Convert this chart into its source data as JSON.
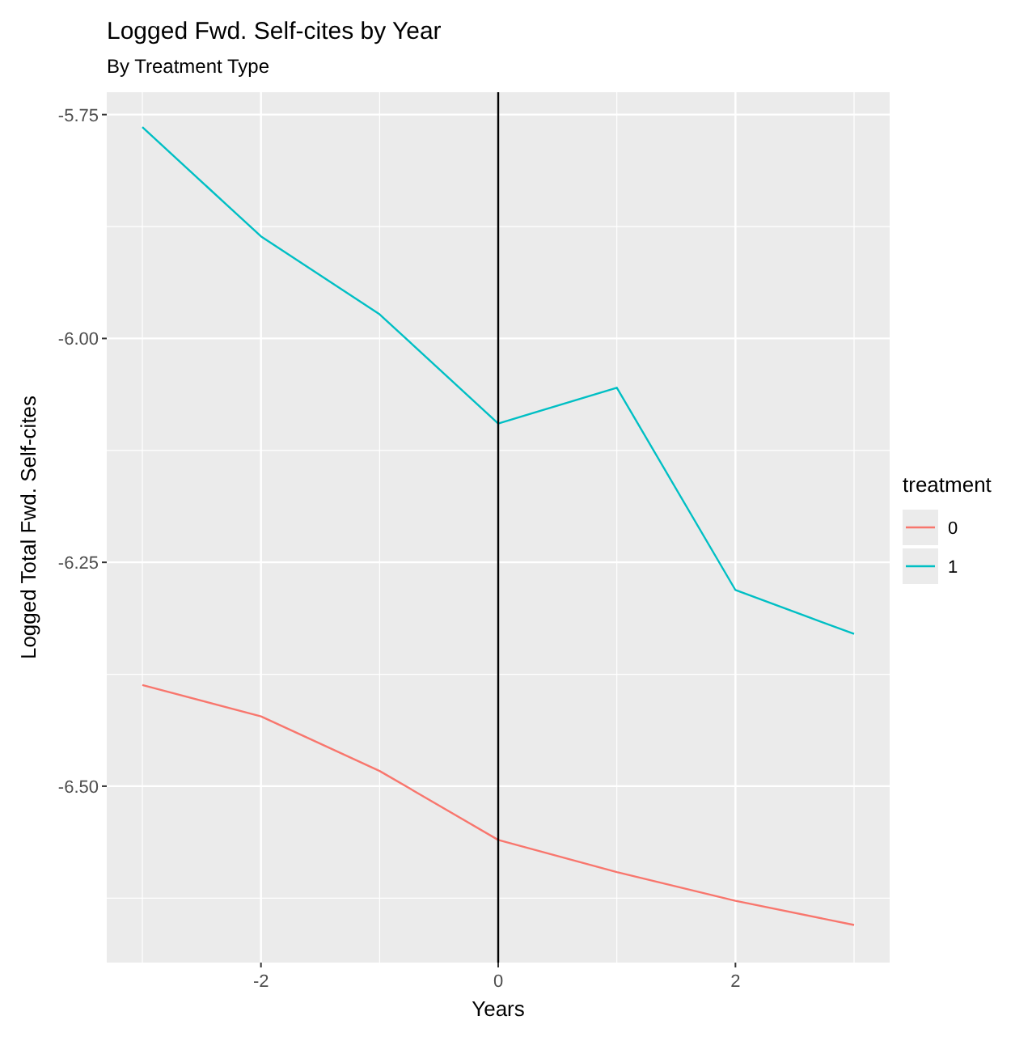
{
  "chart_data": {
    "type": "line",
    "title": "Logged Fwd. Self-cites by Year",
    "subtitle": "By Treatment Type",
    "xlabel": "Years",
    "ylabel": "Logged Total Fwd. Self-cites",
    "legend_title": "treatment",
    "x": [
      -3,
      -2,
      -1,
      0,
      1,
      2,
      3
    ],
    "series": [
      {
        "name": "0",
        "color": "#f8766d",
        "values": [
          -6.387,
          -6.422,
          -6.483,
          -6.56,
          -6.596,
          -6.628,
          -6.655
        ]
      },
      {
        "name": "1",
        "color": "#00bfc4",
        "values": [
          -5.764,
          -5.886,
          -5.973,
          -6.095,
          -6.055,
          -6.281,
          -6.33
        ]
      }
    ],
    "xlim": [
      -3.3,
      3.3
    ],
    "xticks": [
      -2,
      0,
      2
    ],
    "ylim": [
      -6.697,
      -5.725
    ],
    "yticks": [
      -5.75,
      {
        "value": -6,
        "label": "-6.00"
      },
      -6.25,
      {
        "value": -6.5,
        "label": "-6.50"
      }
    ],
    "ref_lines": [
      {
        "axis": "x",
        "value": 0,
        "color": "#000000"
      }
    ],
    "grid": true,
    "legend": "right",
    "marker": "none",
    "line_style": "solid"
  }
}
